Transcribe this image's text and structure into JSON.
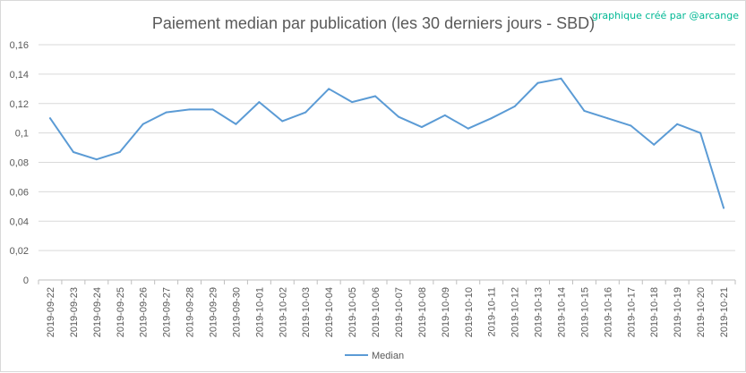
{
  "chart_data": {
    "type": "line",
    "title": "Paiement median par publication (les 30 derniers jours - SBD)",
    "credit": "graphique créé par @arcange",
    "xlabel": "",
    "ylabel": "",
    "ylim": [
      0,
      0.16
    ],
    "yticks": [
      "0",
      "0,02",
      "0,04",
      "0,06",
      "0,08",
      "0,1",
      "0,12",
      "0,14",
      "0,16"
    ],
    "grid": true,
    "legend_position": "bottom",
    "line_color": "#5b9bd5",
    "categories": [
      "2019-09-22",
      "2019-09-23",
      "2019-09-24",
      "2019-09-25",
      "2019-09-26",
      "2019-09-27",
      "2019-09-28",
      "2019-09-29",
      "2019-09-30",
      "2019-10-01",
      "2019-10-02",
      "2019-10-03",
      "2019-10-04",
      "2019-10-05",
      "2019-10-06",
      "2019-10-07",
      "2019-10-08",
      "2019-10-09",
      "2019-10-10",
      "2019-10-11",
      "2019-10-12",
      "2019-10-13",
      "2019-10-14",
      "2019-10-15",
      "2019-10-16",
      "2019-10-17",
      "2019-10-18",
      "2019-10-19",
      "2019-10-20",
      "2019-10-21"
    ],
    "series": [
      {
        "name": "Median",
        "values": [
          0.11,
          0.087,
          0.082,
          0.087,
          0.106,
          0.114,
          0.116,
          0.116,
          0.106,
          0.121,
          0.108,
          0.114,
          0.13,
          0.121,
          0.125,
          0.111,
          0.104,
          0.112,
          0.103,
          0.11,
          0.118,
          0.134,
          0.137,
          0.115,
          0.11,
          0.105,
          0.092,
          0.106,
          0.1,
          0.049
        ]
      }
    ]
  }
}
